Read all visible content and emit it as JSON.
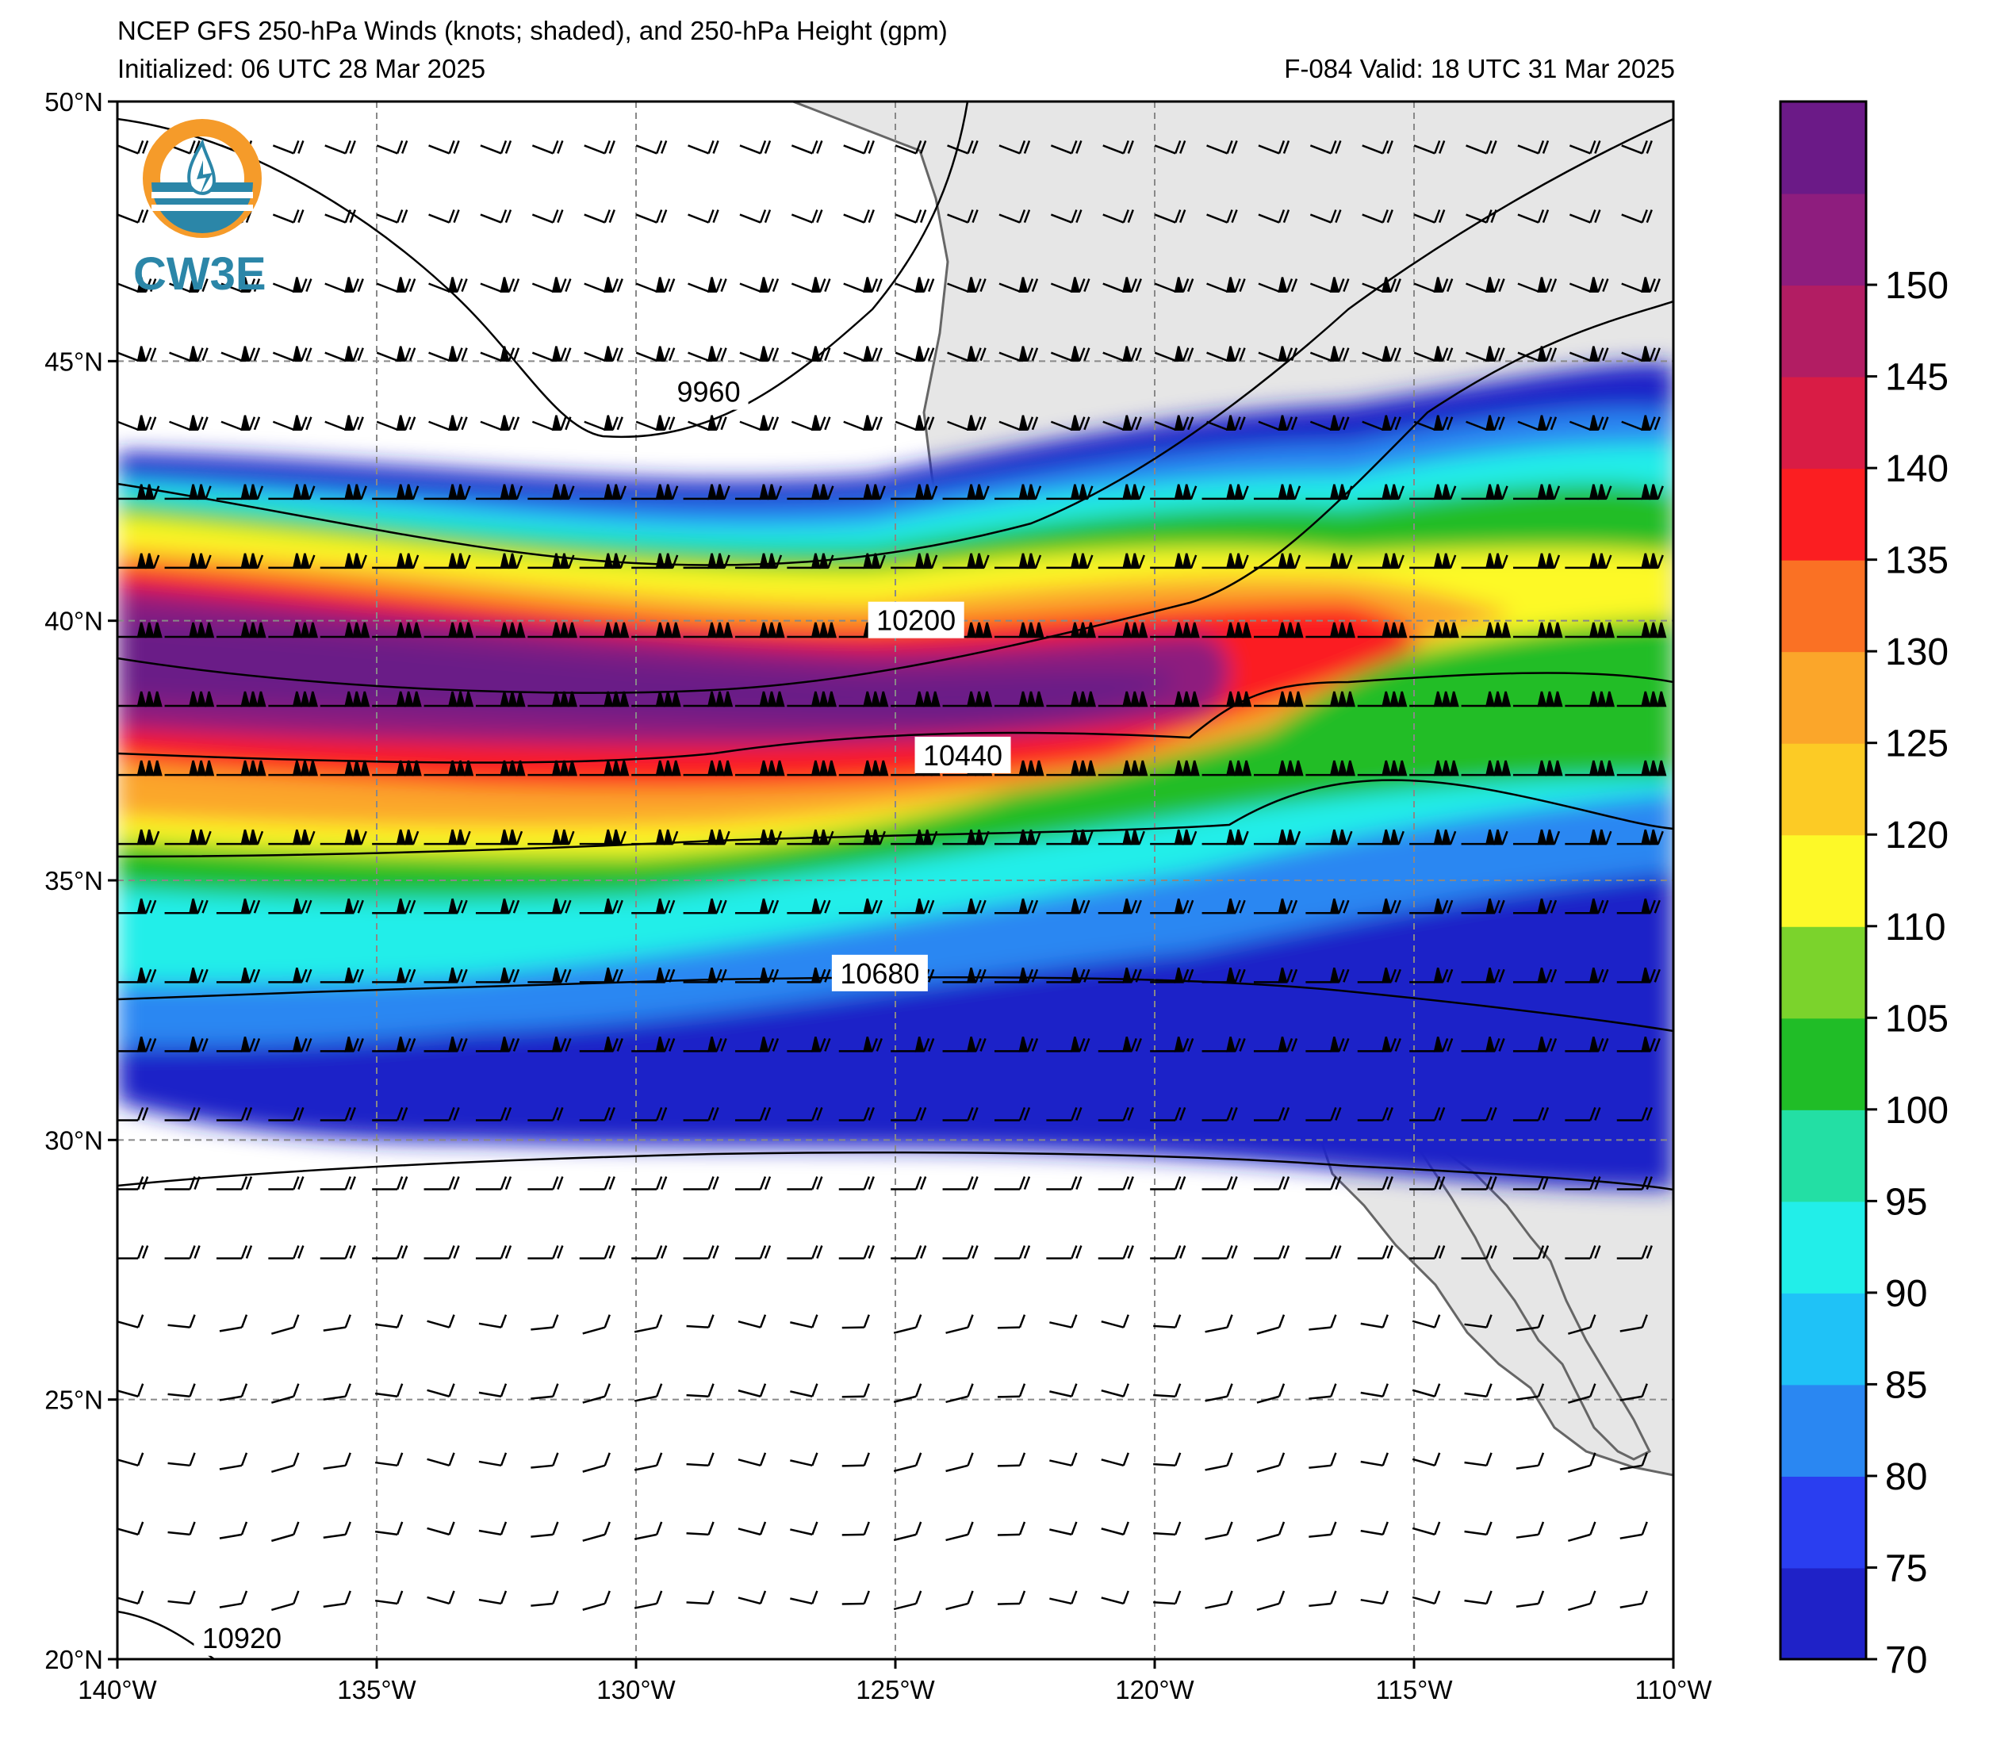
{
  "title": {
    "line1": "NCEP GFS 250-hPa Winds (knots; shaded), and 250-hPa Height (gpm)",
    "initialized": "Initialized: 06 UTC 28 Mar 2025",
    "valid": "F-084  Valid: 18 UTC 31 Mar 2025"
  },
  "logo": {
    "text": "CW3E",
    "icon": "cw3e-logo-icon"
  },
  "map": {
    "lon_range": [
      -140,
      -110
    ],
    "lat_range": [
      20,
      50
    ],
    "lon_ticks": [
      "140°W",
      "135°W",
      "130°W",
      "125°W",
      "120°W",
      "115°W",
      "110°W"
    ],
    "lat_ticks": [
      "50°N",
      "45°N",
      "40°N",
      "35°N",
      "30°N",
      "25°N",
      "20°N"
    ],
    "grid": "dashed",
    "height_contours": [
      {
        "label": "9960",
        "label_lon": -128.6,
        "label_lat": 44.4
      },
      {
        "label": "10200",
        "label_lon": -124.6,
        "label_lat": 40.0
      },
      {
        "label": "10440",
        "label_lon": -123.7,
        "label_lat": 37.4
      },
      {
        "label": "10680",
        "label_lon": -125.3,
        "label_lat": 33.2
      },
      {
        "label": "10920",
        "label_lon": -137.6,
        "label_lat": 20.4
      }
    ]
  },
  "colorbar": {
    "levels": [
      "70",
      "75",
      "80",
      "85",
      "90",
      "95",
      "100",
      "105",
      "110",
      "120",
      "125",
      "130",
      "135",
      "140",
      "145",
      "150"
    ],
    "colors": [
      "#1f22c8",
      "#2a3ef0",
      "#2a87f2",
      "#1fc2f7",
      "#22eee9",
      "#23dfa4",
      "#20bd27",
      "#7bd32c",
      "#fdf928",
      "#fccb25",
      "#fba62a",
      "#fa7124",
      "#fb1e21",
      "#d91c45",
      "#b21d63",
      "#8e1d7e",
      "#6b1a87"
    ],
    "orientation": "vertical",
    "position": "right"
  }
}
